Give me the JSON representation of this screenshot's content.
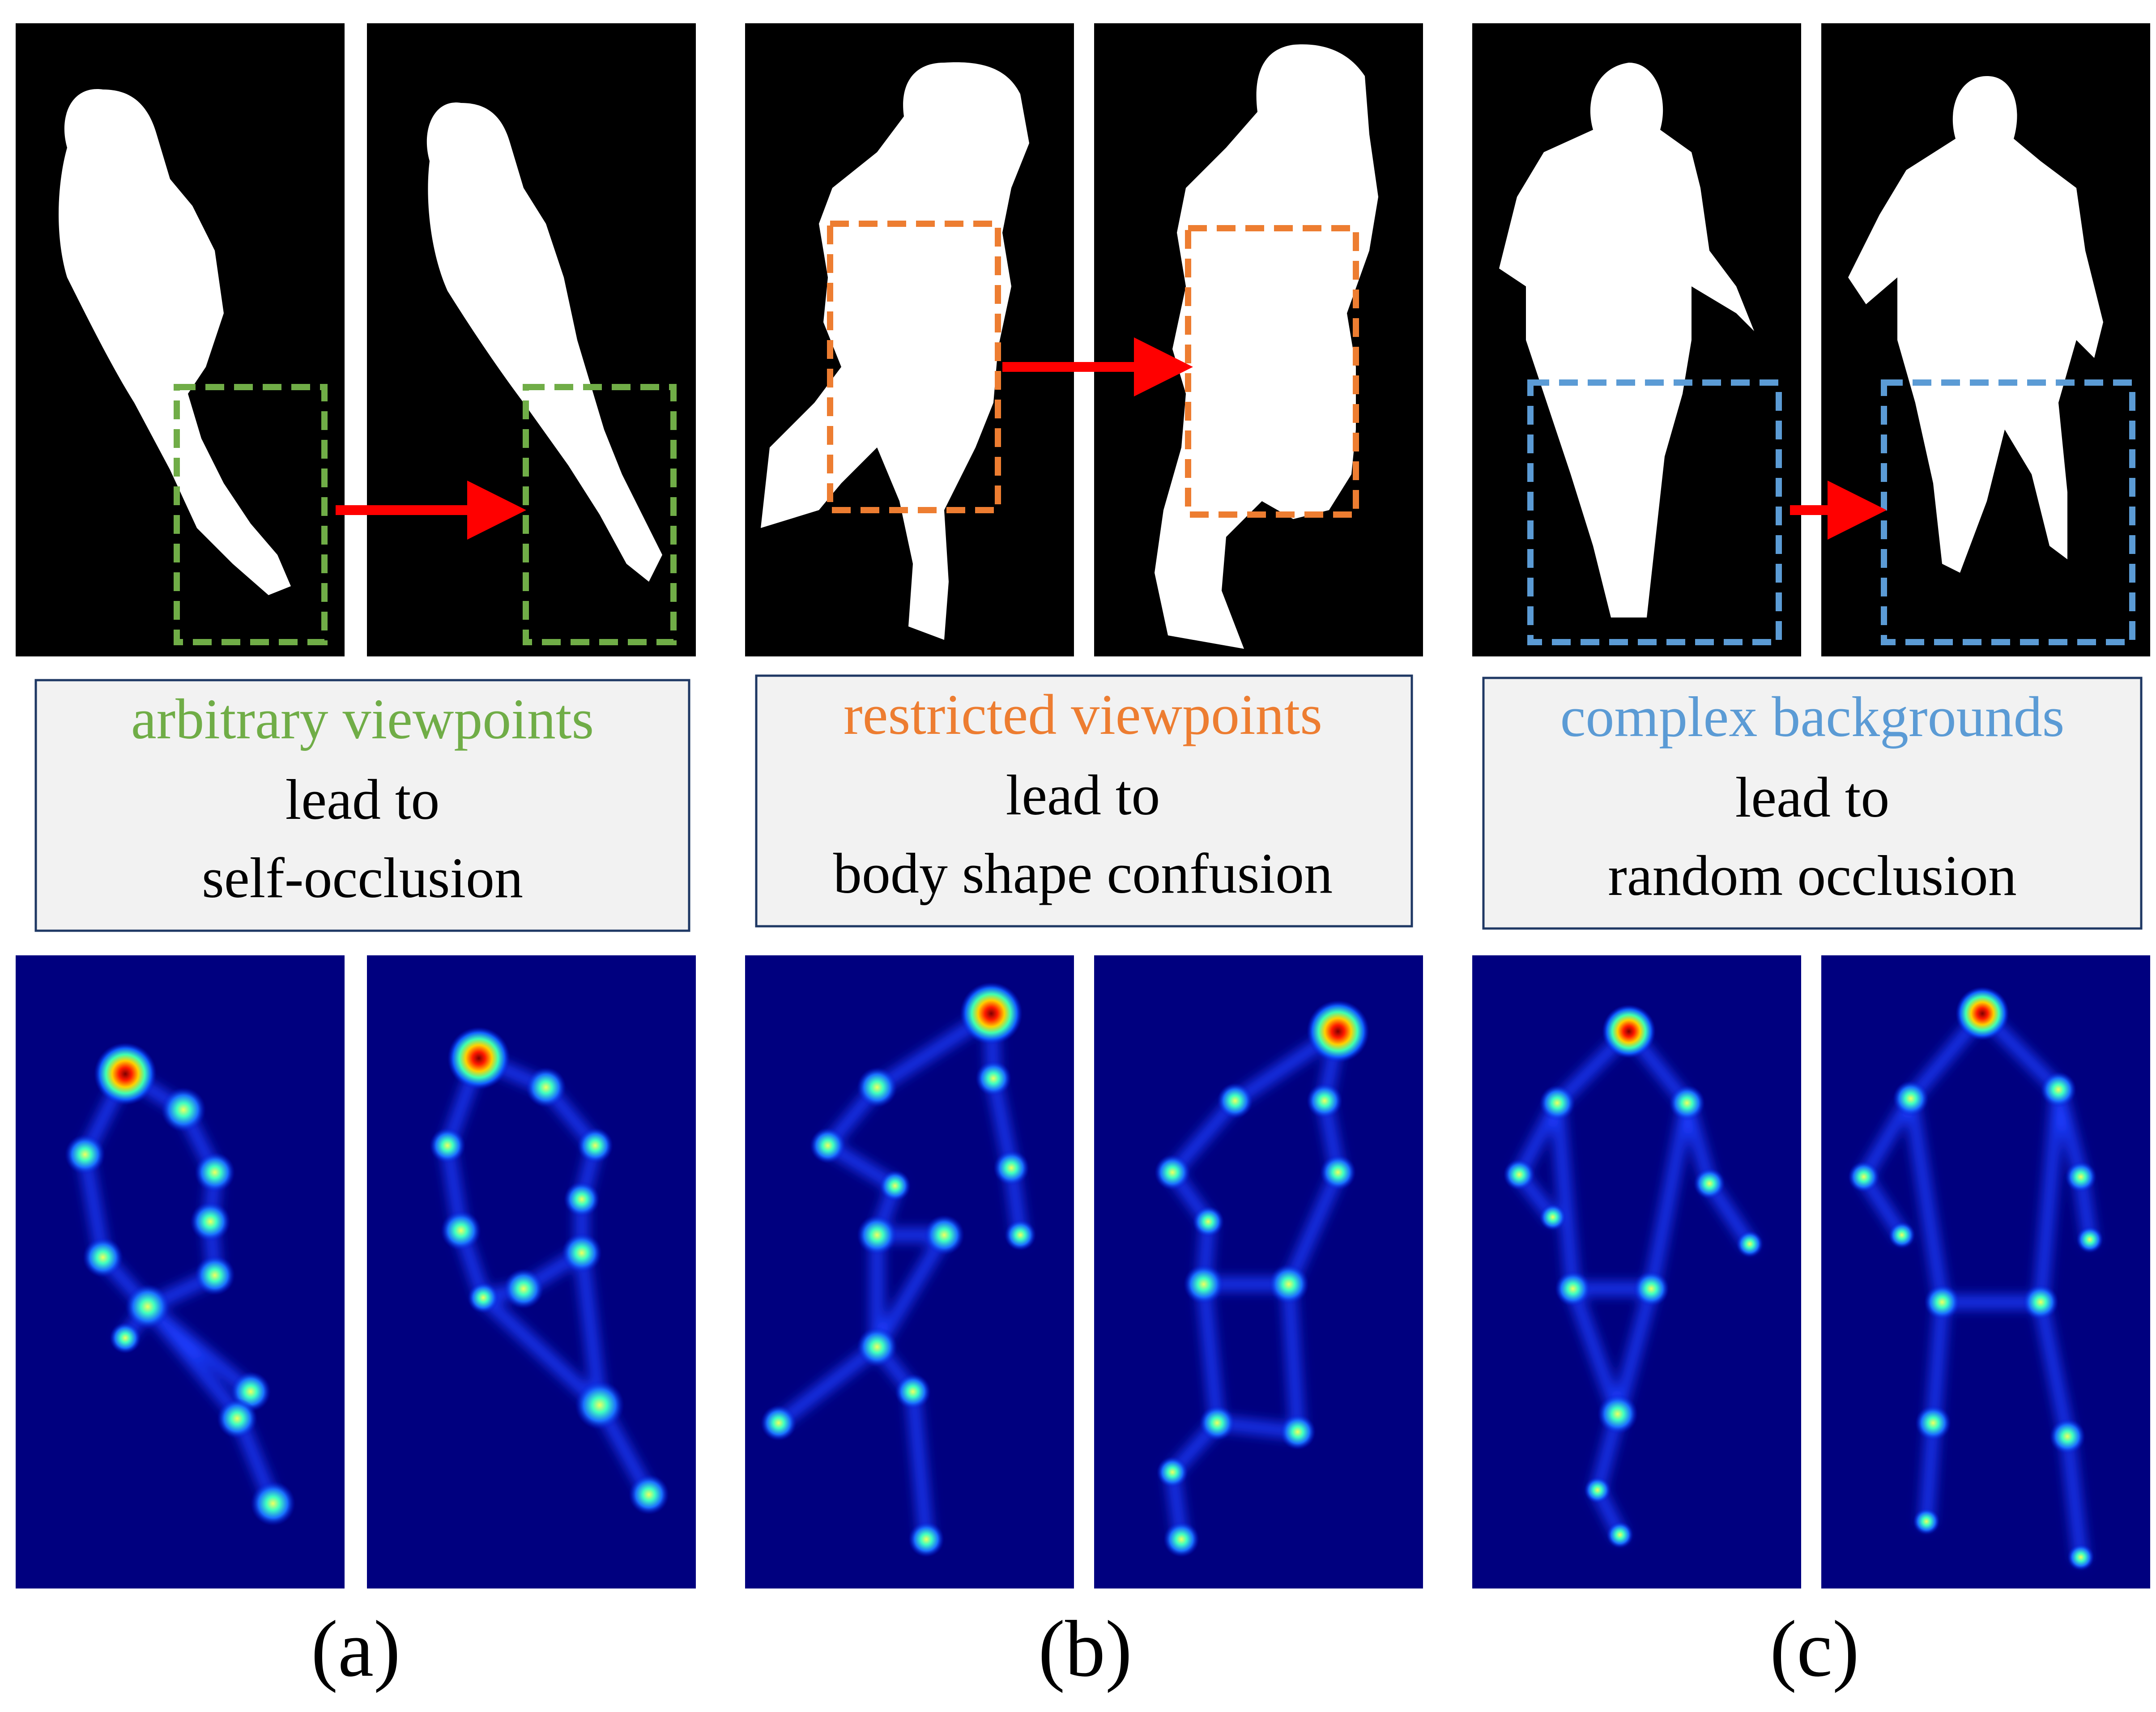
{
  "panels": [
    {
      "label": "(a)",
      "caption": {
        "highlight": "arbitrary viewpoints",
        "line2": "lead to",
        "line3": "self-occlusion"
      },
      "accent_color": "#70ad47"
    },
    {
      "label": "(b)",
      "caption": {
        "highlight": "restricted viewpoints",
        "line2": "lead to",
        "line3": "body shape confusion"
      },
      "accent_color": "#ed7d31"
    },
    {
      "label": "(c)",
      "caption": {
        "highlight": "complex backgrounds",
        "line2": "lead to",
        "line3": "random occlusion"
      },
      "accent_color": "#5b9bd5"
    }
  ],
  "colors": {
    "silhouette_bg": "#000000",
    "silhouette_fg": "#ffffff",
    "heatmap_bg": "#00007f",
    "arrow": "#ff0000",
    "caption_bg": "#f2f2f2",
    "caption_border": "#1f3864",
    "text": "#000000"
  }
}
